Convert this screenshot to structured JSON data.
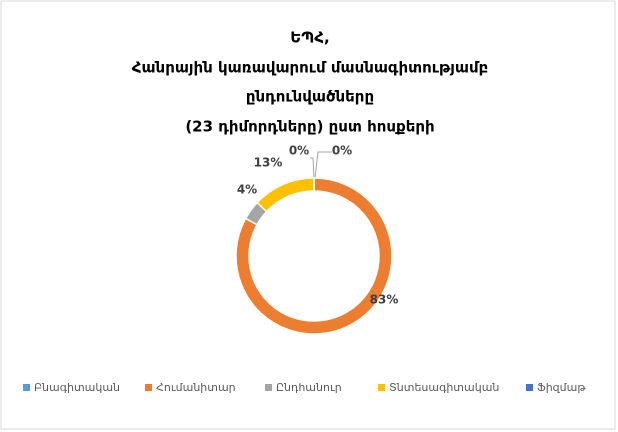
{
  "chart_data": {
    "type": "donut",
    "title": [
      "ԵՊՀ,",
      "Հանրային կառավարում մասնագիտությամբ",
      "ընդունվածները",
      "(23 դիմորդները) ըստ հոսքերի"
    ],
    "categories": [
      "Բնագիտական",
      "Հումանիտար",
      "Ընդհանուր",
      "Տնտեսագիտական",
      "Ֆիզմաթ"
    ],
    "values": [
      0,
      83,
      4,
      13,
      0
    ],
    "value_labels": [
      "0%",
      "83%",
      "4%",
      "13%",
      "0%"
    ],
    "colors": [
      "#5b9bd5",
      "#ed7d31",
      "#a5a5a5",
      "#ffc000",
      "#4472c4"
    ],
    "legend": "bottom"
  }
}
